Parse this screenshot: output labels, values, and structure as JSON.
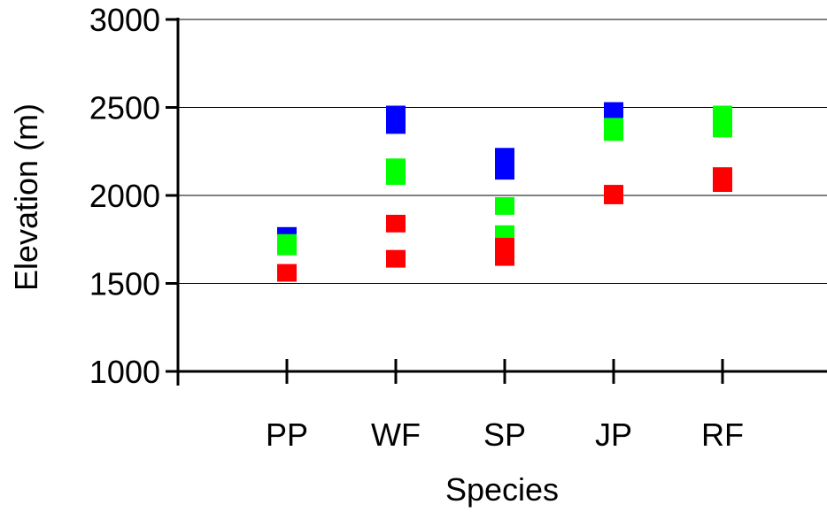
{
  "chart_data": {
    "type": "scatter",
    "title": "",
    "xlabel": "Species",
    "ylabel": "Elevation (m)",
    "categories": [
      "PP",
      "WF",
      "SP",
      "JP",
      "RF"
    ],
    "ylim": [
      1000,
      3000
    ],
    "yticks": [
      "1000",
      "1500",
      "2000",
      "2500",
      "3000"
    ],
    "grid": "horizontal",
    "legend": "none",
    "series": [
      {
        "color": "#0000ff",
        "points": [
          {
            "category": "PP",
            "low": 1770,
            "high": 1820
          },
          {
            "category": "WF",
            "low": 2350,
            "high": 2510
          },
          {
            "category": "SP",
            "low": 2090,
            "high": 2270
          },
          {
            "category": "JP",
            "low": 2440,
            "high": 2530
          }
        ]
      },
      {
        "color": "#00ff00",
        "points": [
          {
            "category": "PP",
            "low": 1660,
            "high": 1780
          },
          {
            "category": "WF",
            "low": 2060,
            "high": 2210
          },
          {
            "category": "SP",
            "low": 1890,
            "high": 1990
          },
          {
            "category": "SP",
            "low": 1760,
            "high": 1830
          },
          {
            "category": "JP",
            "low": 2310,
            "high": 2440
          },
          {
            "category": "RF",
            "low": 2330,
            "high": 2510
          }
        ]
      },
      {
        "color": "#ff0000",
        "points": [
          {
            "category": "PP",
            "low": 1510,
            "high": 1610
          },
          {
            "category": "WF",
            "low": 1790,
            "high": 1890
          },
          {
            "category": "WF",
            "low": 1590,
            "high": 1690
          },
          {
            "category": "SP",
            "low": 1600,
            "high": 1760
          },
          {
            "category": "JP",
            "low": 1950,
            "high": 2060
          },
          {
            "category": "RF",
            "low": 2020,
            "high": 2160
          }
        ]
      }
    ]
  }
}
